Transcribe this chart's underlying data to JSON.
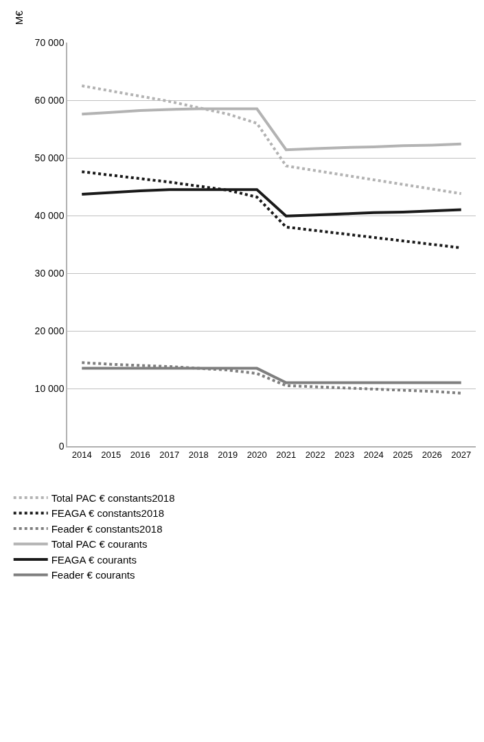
{
  "chart_data": {
    "type": "line",
    "ylabel": "M€",
    "categories": [
      "2014",
      "2015",
      "2016",
      "2017",
      "2018",
      "2019",
      "2020",
      "2021",
      "2022",
      "2023",
      "2024",
      "2025",
      "2026",
      "2027"
    ],
    "series": [
      {
        "name": "Total PAC € constants2018",
        "color": "#b3b3b3",
        "line_style": "dotted",
        "values": [
          62500,
          61600,
          60700,
          59800,
          58700,
          57600,
          56000,
          48600,
          47800,
          47000,
          46200,
          45400,
          44600,
          43800
        ]
      },
      {
        "name": "FEAGA € constants2018",
        "color": "#1a1a1a",
        "line_style": "dotted",
        "values": [
          47600,
          47000,
          46400,
          45800,
          45100,
          44400,
          43200,
          38000,
          37400,
          36800,
          36200,
          35600,
          35000,
          34400
        ]
      },
      {
        "name": "Feader € constants2018",
        "color": "#7f7f7f",
        "line_style": "dotted",
        "values": [
          14500,
          14200,
          14000,
          13800,
          13500,
          13200,
          12600,
          10500,
          10300,
          10100,
          9900,
          9700,
          9500,
          9200
        ]
      },
      {
        "name": "Total PAC € courants",
        "color": "#b3b3b3",
        "line_style": "solid",
        "values": [
          57600,
          57900,
          58200,
          58400,
          58500,
          58500,
          58500,
          51400,
          51600,
          51800,
          51900,
          52100,
          52200,
          52400
        ]
      },
      {
        "name": "FEAGA € courants",
        "color": "#1a1a1a",
        "line_style": "solid",
        "values": [
          43700,
          44000,
          44300,
          44500,
          44500,
          44500,
          44500,
          39900,
          40100,
          40300,
          40500,
          40600,
          40800,
          41000
        ]
      },
      {
        "name": "Feader € courants",
        "color": "#7f7f7f",
        "line_style": "solid",
        "values": [
          13500,
          13500,
          13500,
          13500,
          13500,
          13500,
          13500,
          11000,
          11000,
          11000,
          11000,
          11000,
          11000,
          11000
        ]
      }
    ],
    "ylim": [
      0,
      70000
    ],
    "yticks": [
      {
        "value": 0,
        "label": "0"
      },
      {
        "value": 10000,
        "label": "10 000"
      },
      {
        "value": 20000,
        "label": "20 000"
      },
      {
        "value": 30000,
        "label": "30 000"
      },
      {
        "value": 40000,
        "label": "40 000"
      },
      {
        "value": 50000,
        "label": "50 000"
      },
      {
        "value": 60000,
        "label": "60 000"
      },
      {
        "value": 70000,
        "label": "70 000"
      }
    ],
    "grid": "y",
    "legend": "bottom",
    "marker": "none"
  }
}
